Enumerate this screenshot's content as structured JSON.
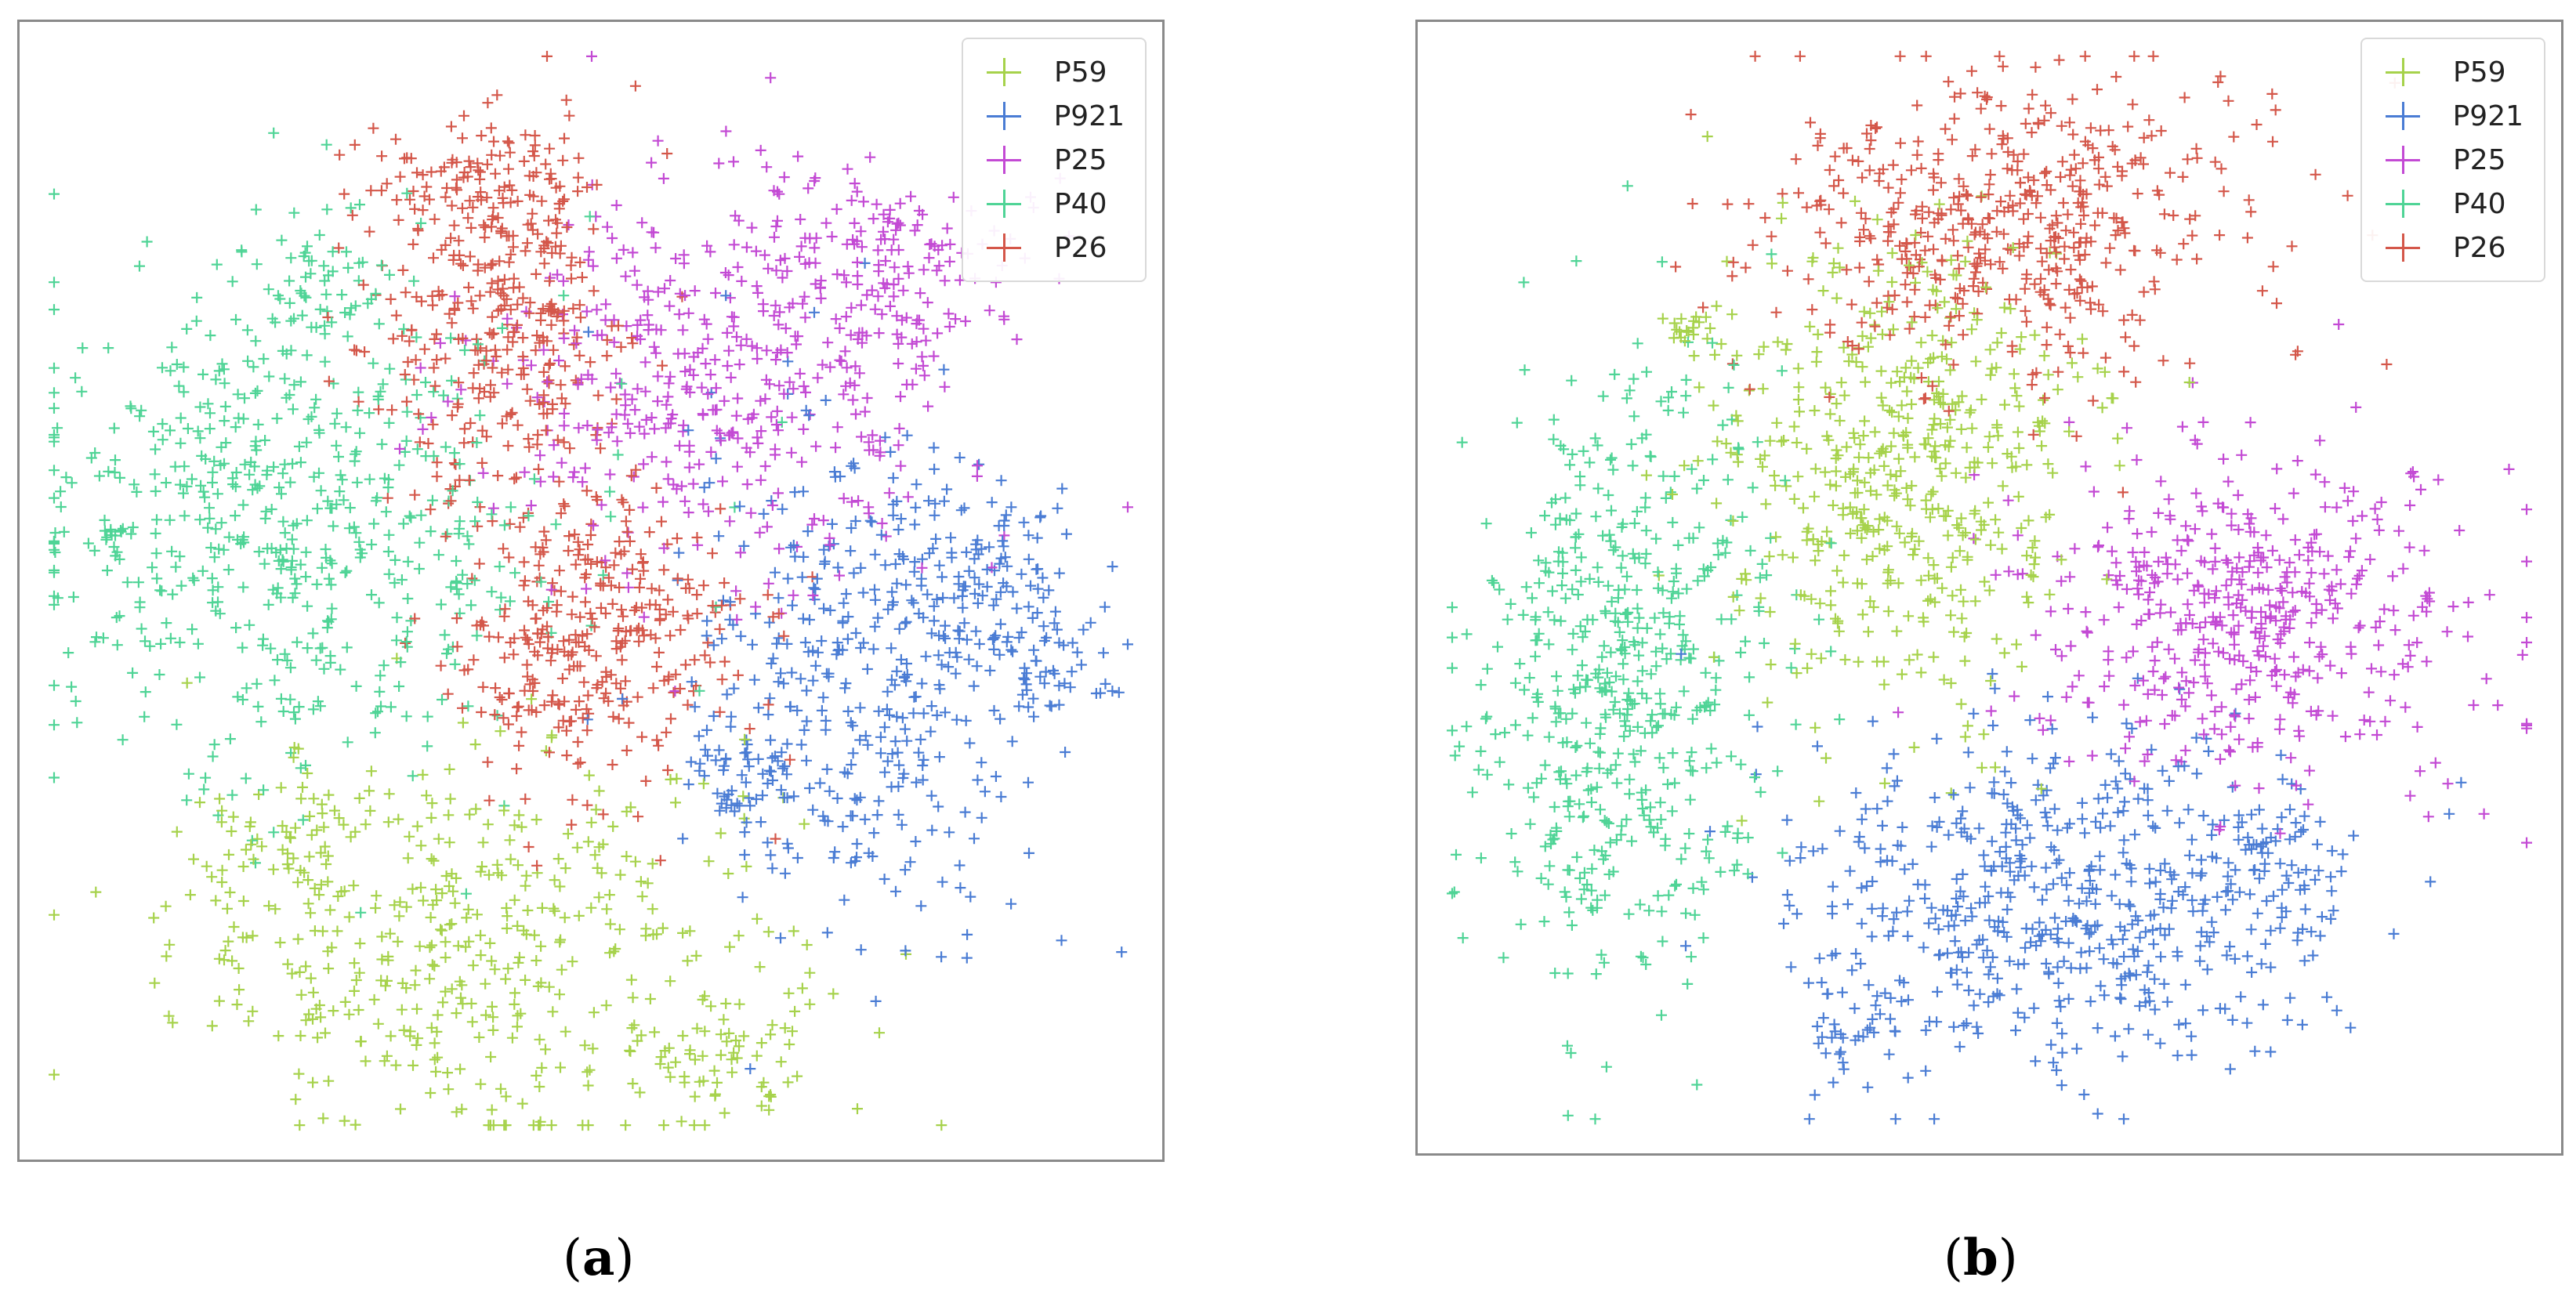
{
  "chart_data": [
    {
      "type": "scatter",
      "caption_letter": "a",
      "marker": "+",
      "legend_position": "top-right",
      "axes_visible": false,
      "xlim": [
        0,
        100
      ],
      "ylim": [
        0,
        100
      ],
      "series": [
        {
          "name": "P59",
          "color": "#a6d24b",
          "clusters": [
            {
              "cx": 40,
              "cy": 17,
              "sx": 14,
              "sy": 9,
              "n": 420
            },
            {
              "cx": 22,
              "cy": 26,
              "sx": 5,
              "sy": 4,
              "n": 60
            },
            {
              "cx": 63,
              "cy": 8,
              "sx": 4,
              "sy": 3,
              "n": 45
            }
          ]
        },
        {
          "name": "P921",
          "color": "#4a7cd4",
          "clusters": [
            {
              "cx": 75,
              "cy": 42,
              "sx": 8,
              "sy": 12,
              "n": 380
            },
            {
              "cx": 87,
              "cy": 52,
              "sx": 4,
              "sy": 4,
              "n": 70
            },
            {
              "cx": 91,
              "cy": 44,
              "sx": 3.5,
              "sy": 3,
              "n": 60
            },
            {
              "cx": 64,
              "cy": 34,
              "sx": 3,
              "sy": 3,
              "n": 50
            }
          ]
        },
        {
          "name": "P25",
          "color": "#c34ad4",
          "clusters": [
            {
              "cx": 62,
              "cy": 70,
              "sx": 11,
              "sy": 9,
              "n": 420
            },
            {
              "cx": 78,
              "cy": 78,
              "sx": 6,
              "sy": 5,
              "n": 130
            }
          ]
        },
        {
          "name": "P40",
          "color": "#4fd496",
          "clusters": [
            {
              "cx": 22,
              "cy": 57,
              "sx": 12,
              "sy": 12,
              "n": 560
            },
            {
              "cx": 25,
              "cy": 78,
              "sx": 4,
              "sy": 3,
              "n": 50
            },
            {
              "cx": 7,
              "cy": 55,
              "sx": 1,
              "sy": 1,
              "n": 12
            }
          ]
        },
        {
          "name": "P26",
          "color": "#d4574a",
          "clusters": [
            {
              "cx": 42,
              "cy": 74,
              "sx": 6,
              "sy": 9,
              "n": 320
            },
            {
              "cx": 50,
              "cy": 46,
              "sx": 7,
              "sy": 6,
              "n": 330
            },
            {
              "cx": 38,
              "cy": 87,
              "sx": 6,
              "sy": 3,
              "n": 90
            }
          ]
        }
      ]
    },
    {
      "type": "scatter",
      "caption_letter": "b",
      "marker": "+",
      "legend_position": "top-right",
      "axes_visible": false,
      "xlim": [
        0,
        100
      ],
      "ylim": [
        0,
        100
      ],
      "series": [
        {
          "name": "P59",
          "color": "#a6d24b",
          "clusters": [
            {
              "cx": 42,
              "cy": 60,
              "sx": 8,
              "sy": 11,
              "n": 500
            },
            {
              "cx": 23,
              "cy": 74,
              "sx": 1.5,
              "sy": 1.2,
              "n": 20
            }
          ]
        },
        {
          "name": "P921",
          "color": "#4a7cd4",
          "clusters": [
            {
              "cx": 56,
              "cy": 21,
              "sx": 13,
              "sy": 8,
              "n": 540
            },
            {
              "cx": 37,
              "cy": 11,
              "sx": 3,
              "sy": 3,
              "n": 40
            },
            {
              "cx": 75,
              "cy": 24,
              "sx": 4,
              "sy": 4,
              "n": 60
            }
          ]
        },
        {
          "name": "P25",
          "color": "#c34ad4",
          "clusters": [
            {
              "cx": 74,
              "cy": 48,
              "sx": 10,
              "sy": 8,
              "n": 480
            }
          ]
        },
        {
          "name": "P40",
          "color": "#4fd496",
          "clusters": [
            {
              "cx": 17,
              "cy": 42,
              "sx": 7,
              "sy": 14,
              "n": 540
            },
            {
              "cx": 13,
              "cy": 22,
              "sx": 1,
              "sy": 1,
              "n": 10
            }
          ]
        },
        {
          "name": "P26",
          "color": "#d4574a",
          "clusters": [
            {
              "cx": 51,
              "cy": 84,
              "sx": 11,
              "sy": 7,
              "n": 500
            }
          ]
        }
      ]
    }
  ]
}
